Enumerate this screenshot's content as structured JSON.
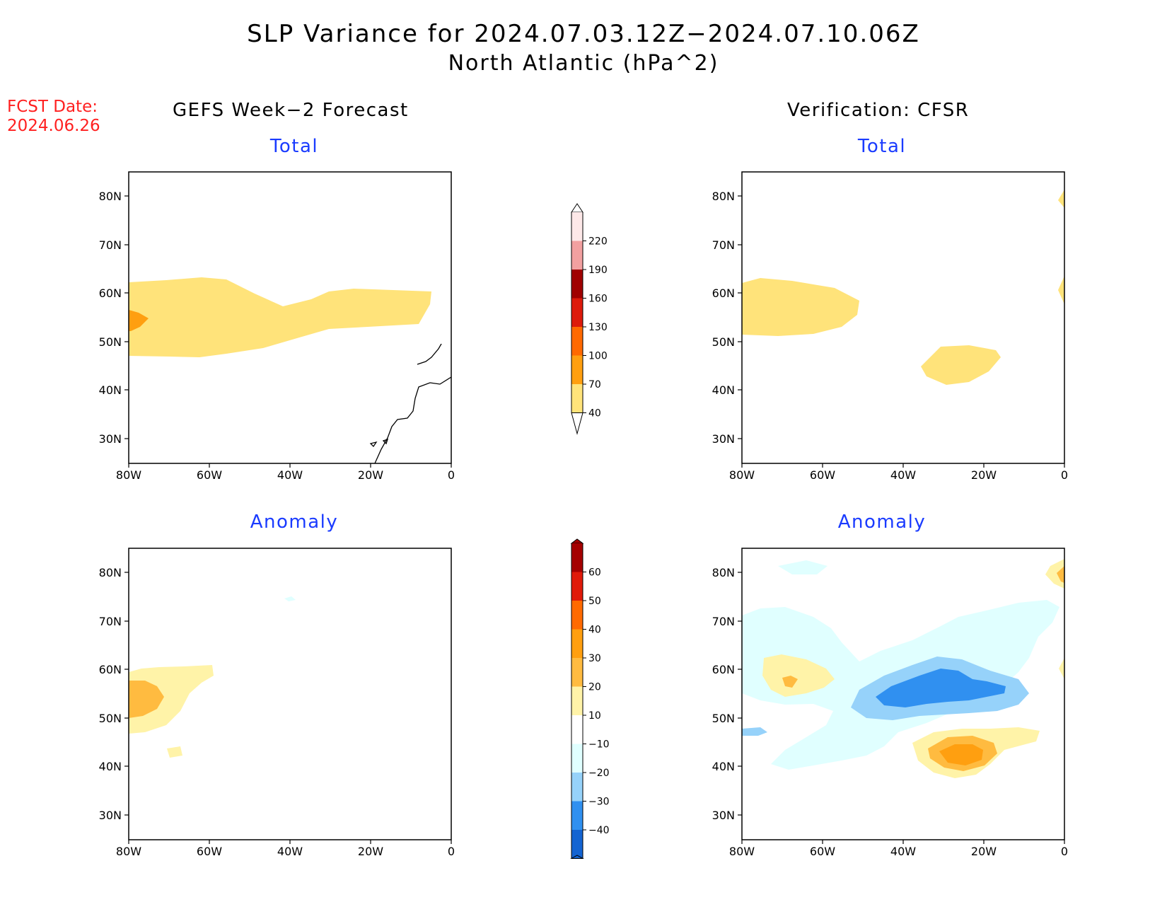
{
  "title": "SLP Variance for 2024.07.03.12Z−2024.07.10.06Z",
  "subtitle": "North Atlantic (hPa^2)",
  "forecast_date": {
    "label": "FCST Date:",
    "value": "2024.06.26"
  },
  "columns": {
    "left": "GEFS Week−2 Forecast",
    "right": "Verification: CFSR"
  },
  "panels": {
    "top_left": "Total",
    "top_right": "Total",
    "bottom_left": "Anomaly",
    "bottom_right": "Anomaly"
  },
  "axes": {
    "lat_labels": [
      "80N",
      "70N",
      "60N",
      "50N",
      "40N",
      "30N"
    ],
    "lon_labels": [
      "80W",
      "60W",
      "40W",
      "20W",
      "0"
    ]
  },
  "colorbars": {
    "total": {
      "labels": [
        "220",
        "190",
        "160",
        "130",
        "100",
        "70",
        "40"
      ],
      "colors": [
        "#fde8e8",
        "#f2a0a0",
        "#a00000",
        "#dd1a0b",
        "#ff6900",
        "#ff9f10",
        "#ffe37a"
      ]
    },
    "anomaly": {
      "labels": [
        "60",
        "50",
        "40",
        "30",
        "20",
        "10",
        "−10",
        "−20",
        "−30",
        "−40"
      ],
      "colors": [
        "#a50000",
        "#e01a0a",
        "#ff6a00",
        "#ff9f10",
        "#ffbb40",
        "#fff3a8",
        "#ffffff",
        "#e0ffff",
        "#96d2fa",
        "#3090f0",
        "#1464d2"
      ]
    }
  },
  "colors": {
    "title_text": "#000000",
    "forecast_date_text": "#ff2020",
    "panel_title_text": "#1a3bff"
  }
}
